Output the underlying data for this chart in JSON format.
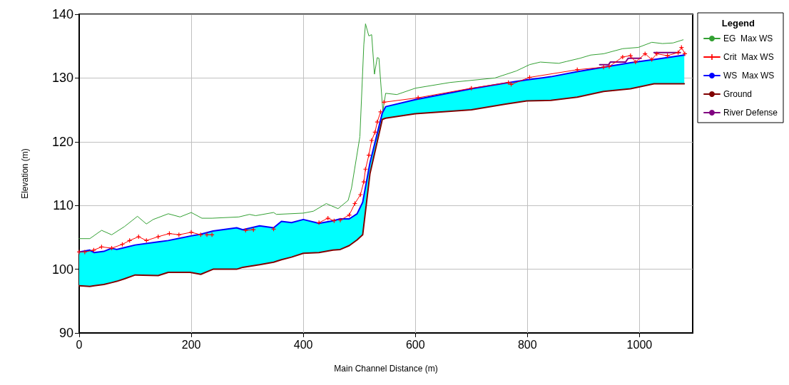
{
  "chart_data": {
    "type": "line",
    "xlabel": "Main Channel Distance (m)",
    "ylabel": "Elevation (m)",
    "legend_title": "Legend",
    "legend": "right",
    "grid": true,
    "xlim": [
      0,
      1095
    ],
    "xticks": [
      0,
      200,
      400,
      600,
      800,
      1000
    ],
    "ylim": [
      90,
      140
    ],
    "yticks": [
      90,
      100,
      110,
      120,
      130,
      140
    ],
    "x": [
      0,
      19,
      27,
      44,
      58,
      67,
      81,
      100,
      141,
      159,
      198,
      217,
      239,
      281,
      292,
      322,
      347,
      361,
      379,
      400,
      428,
      453,
      466,
      482,
      496,
      506,
      519,
      541,
      547,
      600,
      700,
      761,
      799,
      842,
      889,
      936,
      984,
      1026,
      1080
    ],
    "series": [
      {
        "name": "EG  Max WS",
        "color": "#33a033",
        "x": [
          0,
          19,
          40,
          58,
          81,
          104,
          120,
          132,
          159,
          180,
          200,
          219,
          237,
          285,
          304,
          315,
          347,
          352,
          400,
          418,
          441,
          462,
          480,
          486,
          501,
          508,
          511,
          517,
          522,
          527,
          532,
          535,
          542,
          547,
          567,
          600,
          662,
          742,
          780,
          804,
          823,
          856,
          870,
          894,
          913,
          936,
          970,
          998,
          1022,
          1041,
          1060,
          1078
        ],
        "values": [
          104.8,
          104.8,
          106.1,
          105.4,
          106.7,
          108.3,
          107.1,
          107.8,
          108.7,
          108.2,
          108.9,
          108.0,
          108.0,
          108.2,
          108.6,
          108.4,
          108.9,
          108.6,
          108.8,
          109.1,
          110.3,
          109.5,
          110.8,
          112.7,
          120.8,
          135.2,
          138.5,
          136.6,
          136.8,
          130.6,
          133.2,
          133.1,
          124.8,
          127.6,
          127.4,
          128.4,
          129.3,
          130.0,
          131.1,
          132.1,
          132.5,
          132.3,
          132.6,
          133.1,
          133.6,
          133.8,
          134.6,
          134.8,
          135.6,
          135.4,
          135.5,
          136.0
        ]
      },
      {
        "name": "Crit  Max WS",
        "color": "#ff0000",
        "marker": "cross",
        "x": [
          0,
          10,
          26,
          40,
          58,
          77,
          90,
          106,
          120,
          141,
          161,
          178,
          200,
          217,
          222,
          228,
          237,
          270,
          297,
          311,
          330,
          347,
          390,
          428,
          444,
          455,
          460,
          466,
          482,
          492,
          502,
          508,
          511,
          517,
          522,
          528,
          532,
          538,
          541,
          544,
          605,
          700,
          766,
          771,
          804,
          889,
          936,
          946,
          970,
          984,
          993,
          1010,
          1022,
          1031,
          1050,
          1069,
          1075,
          1081
        ],
        "values": [
          102.7,
          102.7,
          103.0,
          103.5,
          103.3,
          103.9,
          104.5,
          105.1,
          104.5,
          105.1,
          105.6,
          105.4,
          105.8,
          105.4,
          null,
          105.4,
          105.4,
          null,
          106.1,
          106.2,
          null,
          106.3,
          null,
          107.3,
          108.0,
          107.6,
          null,
          107.7,
          108.5,
          110.3,
          111.7,
          113.7,
          115.7,
          117.9,
          120.2,
          121.5,
          123.1,
          124.7,
          null,
          126.2,
          126.9,
          128.4,
          129.3,
          129.0,
          130.1,
          131.3,
          131.7,
          131.8,
          133.3,
          133.5,
          132.5,
          133.8,
          132.9,
          133.8,
          133.5,
          134.0,
          134.8,
          133.8
        ]
      },
      {
        "name": "WS  Max WS",
        "color": "#0000ff",
        "values": [
          102.7,
          103.0,
          102.6,
          102.8,
          103.3,
          103.1,
          103.4,
          103.8,
          104.3,
          104.5,
          105.2,
          105.5,
          106.0,
          106.5,
          106.2,
          106.8,
          106.5,
          107.5,
          107.3,
          107.8,
          107.2,
          107.6,
          107.9,
          107.9,
          108.7,
          110.5,
          116.7,
          124.5,
          125.5,
          126.6,
          128.3,
          129.2,
          129.7,
          130.2,
          131.0,
          131.7,
          132.4,
          132.9,
          133.6
        ],
        "lower": [
          97.4,
          97.3,
          97.4,
          97.6,
          97.9,
          98.1,
          98.5,
          99.1,
          99.0,
          99.5,
          99.5,
          99.2,
          100.0,
          100.0,
          100.3,
          100.7,
          101.1,
          101.5,
          101.9,
          102.5,
          102.6,
          103.0,
          103.1,
          103.7,
          104.6,
          105.4,
          115.0,
          123.5,
          123.7,
          124.4,
          125.0,
          125.9,
          126.4,
          126.5,
          127.0,
          127.9,
          128.3,
          129.1,
          129.1
        ],
        "upper": [
          102.7,
          103.0,
          102.6,
          102.8,
          103.3,
          103.1,
          103.4,
          103.8,
          104.3,
          104.5,
          105.2,
          105.5,
          106.0,
          106.5,
          106.2,
          106.8,
          106.5,
          107.5,
          107.3,
          107.8,
          107.2,
          107.6,
          107.9,
          107.9,
          108.7,
          110.5,
          116.7,
          124.5,
          125.5,
          126.6,
          128.3,
          129.2,
          129.7,
          130.2,
          131.0,
          131.7,
          132.4,
          132.9,
          133.6
        ]
      },
      {
        "name": "Ground",
        "color": "#800000",
        "values": [
          97.4,
          97.3,
          97.4,
          97.6,
          97.9,
          98.1,
          98.5,
          99.1,
          99.0,
          99.5,
          99.5,
          99.2,
          100.0,
          100.0,
          100.3,
          100.7,
          101.1,
          101.5,
          101.9,
          102.5,
          102.6,
          103.0,
          103.1,
          103.7,
          104.6,
          105.4,
          115.0,
          123.5,
          123.7,
          124.4,
          125.0,
          125.9,
          126.4,
          126.5,
          127.0,
          127.9,
          128.3,
          129.1,
          129.1
        ]
      },
      {
        "name": "River Defense",
        "color": "#800080",
        "x": [
          929,
          945,
          948,
          975,
          980,
          1003,
          1015,
          1026,
          1073
        ],
        "values": [
          132.1,
          132.1,
          132.5,
          132.5,
          133.1,
          133.1,
          null,
          134.0,
          134.0
        ]
      }
    ]
  }
}
